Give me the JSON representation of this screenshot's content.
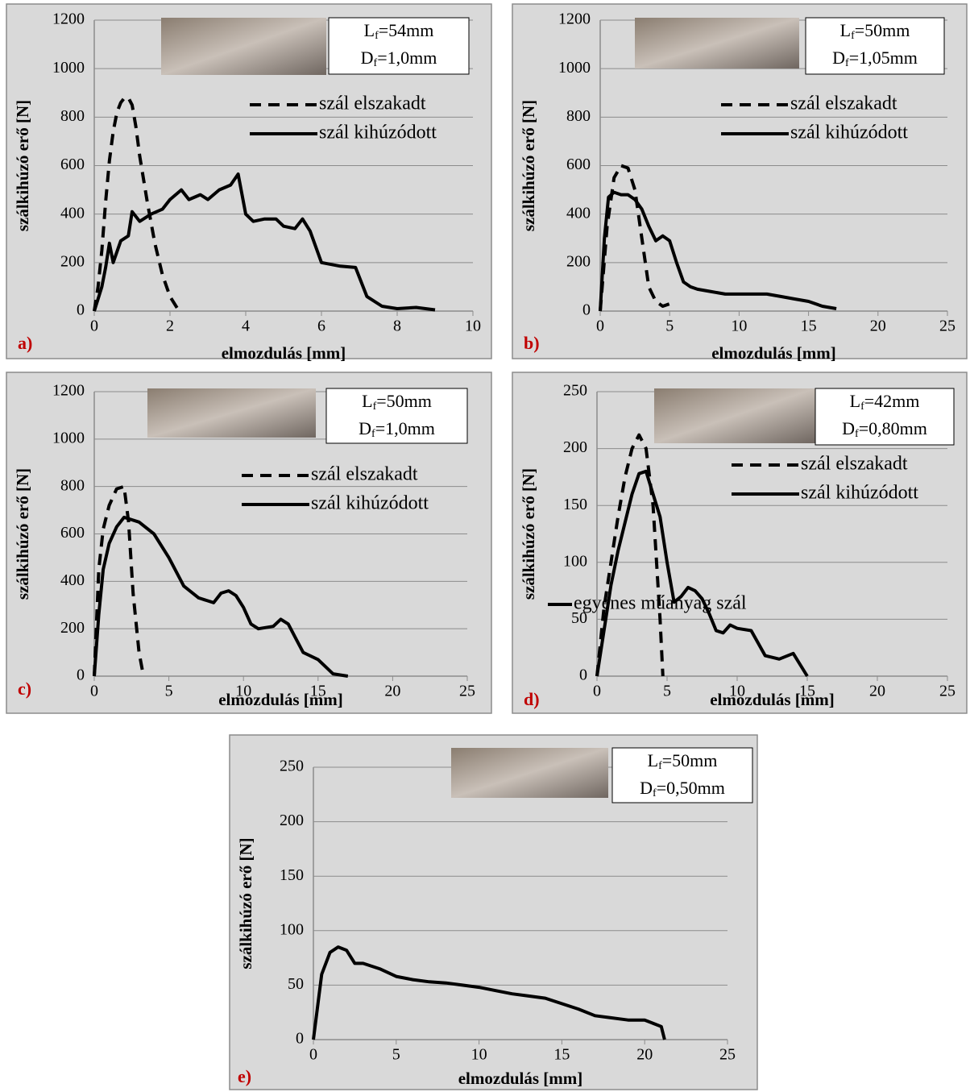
{
  "chart_data": [
    {
      "type": "line",
      "panel_label": "a)",
      "xlabel": "elmozdulás [mm]",
      "ylabel": "szálkihúzó erő [N]",
      "annotations": [
        "Lf=54mm",
        "Df=1,0mm"
      ],
      "xlim": [
        0,
        10
      ],
      "xticks": [
        0,
        2,
        4,
        6,
        8,
        10
      ],
      "ylim": [
        0,
        1200
      ],
      "yticks": [
        0,
        200,
        400,
        600,
        800,
        1000,
        1200
      ],
      "grid": true,
      "legend": "upper right",
      "series": [
        {
          "name": "szál elszakadt",
          "color": "#000000",
          "dash": true,
          "x": [
            0,
            0.1,
            0.2,
            0.3,
            0.4,
            0.5,
            0.6,
            0.7,
            0.8,
            0.9,
            1.0,
            1.1,
            1.2,
            1.4,
            1.6,
            1.8,
            2.0,
            2.2
          ],
          "values": [
            0,
            100,
            250,
            450,
            620,
            740,
            820,
            860,
            880,
            880,
            850,
            760,
            640,
            450,
            280,
            150,
            60,
            10
          ]
        },
        {
          "name": "szál kihúzódott",
          "color": "#000000",
          "dash": false,
          "x": [
            0,
            0.1,
            0.2,
            0.3,
            0.4,
            0.5,
            0.7,
            0.9,
            1.0,
            1.2,
            1.5,
            1.8,
            2.0,
            2.3,
            2.5,
            2.8,
            3.0,
            3.3,
            3.6,
            3.8,
            4.0,
            4.2,
            4.5,
            4.8,
            5.0,
            5.3,
            5.5,
            5.7,
            6.0,
            6.5,
            6.9,
            7.2,
            7.6,
            8.0,
            8.5,
            9.0
          ],
          "values": [
            0,
            50,
            100,
            180,
            280,
            200,
            290,
            310,
            410,
            370,
            400,
            420,
            460,
            500,
            460,
            480,
            460,
            500,
            520,
            565,
            400,
            370,
            380,
            380,
            350,
            340,
            380,
            330,
            200,
            185,
            180,
            60,
            20,
            10,
            15,
            5
          ]
        }
      ]
    },
    {
      "type": "line",
      "panel_label": "b)",
      "xlabel": "elmozdulás [mm]",
      "ylabel": "szálkihúzó erő [N]",
      "annotations": [
        "Lf=50mm",
        "Df=1,05mm"
      ],
      "xlim": [
        0,
        25
      ],
      "xticks": [
        0,
        5,
        10,
        15,
        20,
        25
      ],
      "ylim": [
        0,
        1200
      ],
      "yticks": [
        0,
        200,
        400,
        600,
        800,
        1000,
        1200
      ],
      "grid": true,
      "legend": "upper right",
      "series": [
        {
          "name": "szál elszakadt",
          "color": "#000000",
          "dash": true,
          "x": [
            0,
            0.5,
            1,
            1.5,
            2,
            2.5,
            3,
            3.5,
            4,
            4.5,
            5
          ],
          "values": [
            0,
            350,
            550,
            600,
            590,
            500,
            300,
            100,
            40,
            20,
            30
          ]
        },
        {
          "name": "szál kihúzódott",
          "color": "#000000",
          "dash": false,
          "x": [
            0,
            0.3,
            0.6,
            1,
            1.5,
            2,
            2.5,
            3,
            3.5,
            4,
            4.5,
            5,
            5.5,
            6,
            6.5,
            7,
            8,
            9,
            10,
            11,
            12,
            13,
            14,
            15,
            16,
            17
          ],
          "values": [
            0,
            300,
            470,
            490,
            480,
            480,
            460,
            420,
            350,
            290,
            310,
            290,
            200,
            120,
            100,
            90,
            80,
            70,
            70,
            70,
            70,
            60,
            50,
            40,
            20,
            10
          ]
        }
      ]
    },
    {
      "type": "line",
      "panel_label": "c)",
      "xlabel": "elmozdulás [mm]",
      "ylabel": "szálkihúzó erő [N]",
      "annotations": [
        "Lf=50mm",
        "Df=1,0mm"
      ],
      "xlim": [
        0,
        25
      ],
      "xticks": [
        0,
        5,
        10,
        15,
        20,
        25
      ],
      "ylim": [
        0,
        1200
      ],
      "yticks": [
        0,
        200,
        400,
        600,
        800,
        1000,
        1200
      ],
      "grid": true,
      "legend": "upper right",
      "series": [
        {
          "name": "szál elszakadt",
          "color": "#000000",
          "dash": true,
          "x": [
            0,
            0.3,
            0.6,
            1,
            1.5,
            2,
            2.3,
            2.6,
            3,
            3.3
          ],
          "values": [
            0,
            450,
            620,
            720,
            790,
            800,
            650,
            350,
            100,
            0
          ]
        },
        {
          "name": "szál kihúzódott",
          "color": "#000000",
          "dash": false,
          "x": [
            0,
            0.3,
            0.6,
            1,
            1.5,
            2,
            3,
            4,
            5,
            6,
            7,
            7.5,
            8,
            8.5,
            9,
            9.5,
            10,
            10.5,
            11,
            12,
            12.5,
            13,
            13.5,
            14,
            15,
            16,
            17
          ],
          "values": [
            0,
            260,
            450,
            560,
            630,
            670,
            650,
            600,
            500,
            380,
            330,
            320,
            310,
            350,
            360,
            340,
            290,
            220,
            200,
            210,
            240,
            220,
            160,
            100,
            70,
            10,
            0
          ]
        }
      ]
    },
    {
      "type": "line",
      "panel_label": "d)",
      "xlabel": "elmozdulás [mm]",
      "ylabel": "szálkihúzó erő [N]",
      "annotations": [
        "Lf=42mm",
        "Df=0,80mm"
      ],
      "xlim": [
        0,
        25
      ],
      "xticks": [
        0,
        5,
        10,
        15,
        20,
        25
      ],
      "ylim": [
        0,
        250
      ],
      "yticks": [
        0,
        50,
        100,
        150,
        200,
        250
      ],
      "grid": true,
      "legend": "upper right",
      "series": [
        {
          "name": "szál elszakadt",
          "color": "#000000",
          "dash": true,
          "x": [
            0,
            0.5,
            1,
            1.5,
            2,
            2.5,
            3,
            3.5,
            4,
            4.5,
            4.7
          ],
          "values": [
            0,
            60,
            100,
            140,
            175,
            200,
            212,
            200,
            150,
            50,
            0
          ]
        },
        {
          "name": "szál kihúzódott",
          "color": "#000000",
          "dash": false,
          "x": [
            0,
            0.5,
            1,
            1.5,
            2,
            2.5,
            3,
            3.5,
            4,
            4.5,
            5,
            5.5,
            6,
            6.5,
            7,
            7.5,
            8,
            8.5,
            9,
            9.5,
            10,
            11,
            12,
            13,
            14,
            15
          ],
          "values": [
            0,
            40,
            80,
            110,
            135,
            160,
            178,
            180,
            160,
            140,
            100,
            65,
            70,
            78,
            75,
            68,
            55,
            40,
            38,
            45,
            42,
            40,
            18,
            15,
            20,
            0
          ]
        }
      ]
    },
    {
      "type": "line",
      "panel_label": "e)",
      "xlabel": "elmozdulás [mm]",
      "ylabel": "szálkihúzó erő [N]",
      "annotations": [
        "Lf=50mm",
        "Df=0,50mm"
      ],
      "xlim": [
        0,
        25
      ],
      "xticks": [
        0,
        5,
        10,
        15,
        20,
        25
      ],
      "ylim": [
        0,
        250
      ],
      "yticks": [
        0,
        50,
        100,
        150,
        200,
        250
      ],
      "grid": true,
      "legend": "upper right",
      "series": [
        {
          "name": "egyenes műanyag szál",
          "color": "#000000",
          "dash": false,
          "x": [
            0,
            0.5,
            1,
            1.5,
            2,
            2.5,
            3,
            4,
            5,
            6,
            7,
            8,
            9,
            10,
            11,
            12,
            13,
            14,
            15,
            16,
            17,
            18,
            19,
            20,
            20.5,
            21,
            21.2
          ],
          "values": [
            0,
            60,
            80,
            85,
            82,
            70,
            70,
            65,
            58,
            55,
            53,
            52,
            50,
            48,
            45,
            42,
            40,
            38,
            33,
            28,
            22,
            20,
            18,
            18,
            15,
            12,
            0
          ]
        }
      ]
    }
  ]
}
